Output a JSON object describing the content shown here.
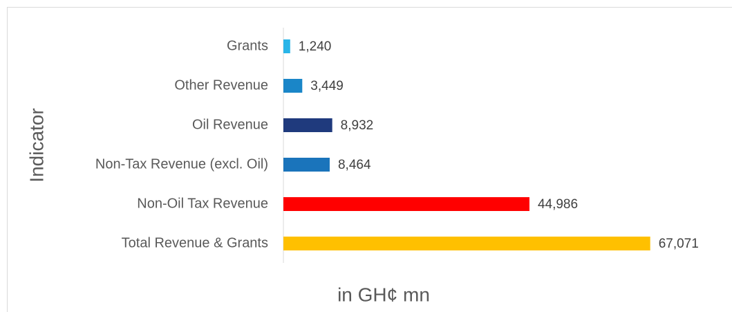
{
  "chart_data": {
    "type": "bar",
    "orientation": "horizontal",
    "x_label": "in GH¢ mn",
    "y_label": "Indicator",
    "categories": [
      "Grants",
      "Other Revenue",
      "Oil Revenue",
      "Non-Tax Revenue (excl. Oil)",
      "Non-Oil Tax Revenue",
      "Total Revenue & Grants"
    ],
    "values": [
      1240,
      3449,
      8932,
      8464,
      44986,
      67071
    ],
    "value_labels": [
      "1,240",
      "3,449",
      "8,932",
      "8,464",
      "44,986",
      "67,071"
    ],
    "colors": [
      "#29b5e8",
      "#1a86c8",
      "#1f3a7d",
      "#1a74bb",
      "#ff0000",
      "#ffc000"
    ],
    "xlim": [
      0,
      80000
    ]
  }
}
